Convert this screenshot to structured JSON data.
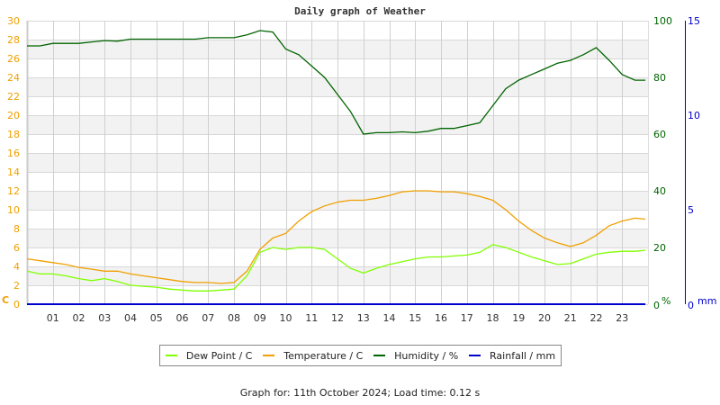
{
  "chart_data": {
    "type": "line",
    "title": "Daily graph of Weather",
    "xlabel": "",
    "x_ticks": [
      "01",
      "02",
      "03",
      "04",
      "05",
      "06",
      "07",
      "08",
      "09",
      "10",
      "11",
      "12",
      "13",
      "14",
      "15",
      "16",
      "17",
      "18",
      "19",
      "20",
      "21",
      "22",
      "23"
    ],
    "xlim": [
      0,
      24
    ],
    "grid": true,
    "legend_position": "bottom",
    "axes": {
      "left": {
        "label": "C",
        "ylim": [
          0,
          30
        ],
        "ticks": [
          0,
          2,
          4,
          6,
          8,
          10,
          12,
          14,
          16,
          18,
          20,
          22,
          24,
          26,
          28,
          30
        ],
        "color": "#f0a000"
      },
      "right_humidity": {
        "label": "%",
        "ylim": [
          0,
          100
        ],
        "ticks": [
          0,
          20,
          40,
          60,
          80,
          100
        ],
        "color": "#006400"
      },
      "right_rain": {
        "label": "mm",
        "ylim": [
          0,
          15
        ],
        "ticks": [
          0,
          5,
          10,
          15
        ],
        "color": "#0000cc"
      }
    },
    "x": [
      0,
      0.5,
      1,
      1.5,
      2,
      2.5,
      3,
      3.5,
      4,
      4.5,
      5,
      5.5,
      6,
      6.5,
      7,
      7.5,
      8,
      8.5,
      9,
      9.5,
      10,
      10.5,
      11,
      11.5,
      12,
      12.5,
      13,
      13.5,
      14,
      14.5,
      15,
      15.5,
      16,
      16.5,
      17,
      17.5,
      18,
      18.5,
      19,
      19.5,
      20,
      20.5,
      21,
      21.5,
      22,
      22.5,
      23,
      23.5,
      23.9
    ],
    "series": [
      {
        "name": "Dew Point / C",
        "axis": "left",
        "color": "#80ff00",
        "values": [
          3.5,
          3.2,
          3.2,
          3.0,
          2.7,
          2.5,
          2.7,
          2.4,
          2.0,
          1.9,
          1.8,
          1.6,
          1.5,
          1.4,
          1.4,
          1.5,
          1.6,
          3.0,
          5.5,
          6.0,
          5.8,
          6.0,
          6.0,
          5.8,
          4.8,
          3.8,
          3.3,
          3.8,
          4.2,
          4.5,
          4.8,
          5.0,
          5.0,
          5.1,
          5.2,
          5.5,
          6.3,
          6.0,
          5.5,
          5.0,
          4.6,
          4.2,
          4.3,
          4.8,
          5.3,
          5.5,
          5.6,
          5.6,
          5.7
        ]
      },
      {
        "name": "Temperature / C",
        "axis": "left",
        "color": "#f0a000",
        "values": [
          4.8,
          4.6,
          4.4,
          4.2,
          3.9,
          3.7,
          3.5,
          3.5,
          3.2,
          3.0,
          2.8,
          2.6,
          2.4,
          2.3,
          2.3,
          2.2,
          2.3,
          3.5,
          5.8,
          7.0,
          7.5,
          8.8,
          9.8,
          10.4,
          10.8,
          11.0,
          11.0,
          11.2,
          11.5,
          11.9,
          12.0,
          12.0,
          11.9,
          11.9,
          11.7,
          11.4,
          11.0,
          10.0,
          8.8,
          7.8,
          7.0,
          6.5,
          6.1,
          6.5,
          7.3,
          8.3,
          8.8,
          9.1,
          9.0
        ]
      },
      {
        "name": "Humidity / %",
        "axis": "right_humidity",
        "color": "#006400",
        "values": [
          91.1,
          91.1,
          92,
          92,
          92,
          92.5,
          93,
          92.8,
          93.5,
          93.5,
          93.5,
          93.5,
          93.5,
          93.5,
          94,
          94,
          94,
          95,
          96.5,
          96,
          90,
          88,
          84,
          80,
          74,
          68,
          60,
          60.5,
          60.5,
          60.8,
          60.5,
          61,
          62,
          62,
          63,
          64,
          70,
          76,
          79,
          81,
          83,
          85,
          86,
          88,
          90.5,
          86,
          81,
          79,
          79
        ]
      },
      {
        "name": "Rainfall / mm",
        "axis": "right_rain",
        "color": "#0000cc",
        "values": [
          0,
          0,
          0,
          0,
          0,
          0,
          0,
          0,
          0,
          0,
          0,
          0,
          0,
          0,
          0,
          0,
          0,
          0,
          0,
          0,
          0,
          0,
          0,
          0,
          0,
          0,
          0,
          0,
          0,
          0,
          0,
          0,
          0,
          0,
          0,
          0,
          0,
          0,
          0,
          0,
          0,
          0,
          0,
          0,
          0,
          0,
          0,
          0,
          0
        ]
      }
    ]
  },
  "legend": {
    "items": [
      {
        "label": "Dew Point / C",
        "color": "#80ff00"
      },
      {
        "label": "Temperature / C",
        "color": "#f0a000"
      },
      {
        "label": "Humidity / %",
        "color": "#006400"
      },
      {
        "label": "Rainfall / mm",
        "color": "#0000cc"
      }
    ]
  },
  "footer": {
    "text": "Graph for: 11th October 2024; Load time: 0.12 s"
  }
}
